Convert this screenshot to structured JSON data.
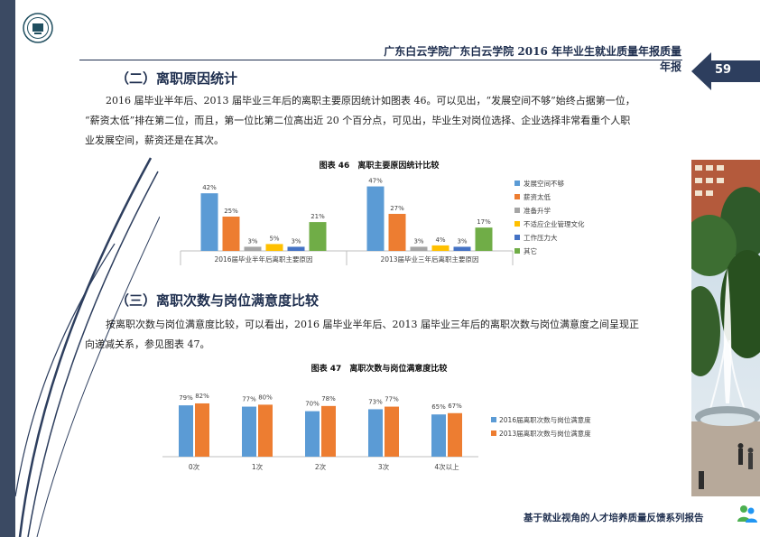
{
  "header": {
    "title": "广东白云学院广东白云学院 2016 年毕业生就业质量年报质量年报",
    "page_number": "59"
  },
  "section2": {
    "title": "（二）离职原因统计",
    "paragraph_lines": [
      "2016 届毕业半年后、2013 届毕业三年后的离职主要原因统计如图表 46。可以见出，“发展空间不够”始终占据第一位，",
      "“薪资太低”排在第二位，而且，第一位比第二位高出近 20 个百分点，可见出，毕业生对岗位选择、企业选择非常看重个人职",
      "业发展空间，薪资还是在其次。"
    ]
  },
  "chart46": {
    "title": "图表 46　离职主要原因统计比较",
    "chart_data": {
      "type": "bar",
      "title": "图表 46　离职主要原因统计比较",
      "categories": [
        "2016届毕业半年后离职主要原因",
        "2013届毕业三年后离职主要原因"
      ],
      "series": [
        {
          "name": "发展空间不够",
          "values": [
            42,
            47
          ],
          "labels": [
            "42%",
            "47%"
          ],
          "color": "#5b9bd5"
        },
        {
          "name": "薪资太低",
          "values": [
            25,
            27
          ],
          "labels": [
            "25%",
            "27%"
          ],
          "color": "#ed7d31"
        },
        {
          "name": "准备升学",
          "values": [
            3,
            3
          ],
          "labels": [
            "3%",
            "3%"
          ],
          "color": "#a5a5a5"
        },
        {
          "name": "不适应企业管理文化",
          "values": [
            5,
            4
          ],
          "labels": [
            "5%",
            "4%"
          ],
          "color": "#ffc000"
        },
        {
          "name": "工作压力大",
          "values": [
            3,
            3
          ],
          "labels": [
            "3%",
            "3%"
          ],
          "color": "#4472c4"
        },
        {
          "name": "其它",
          "values": [
            21,
            17
          ],
          "labels": [
            "21%",
            "17%"
          ],
          "color": "#70ad47"
        }
      ],
      "ylim": [
        0,
        50
      ],
      "grid": false,
      "legend": "right"
    }
  },
  "section3": {
    "title": "（三）离职次数与岗位满意度比较",
    "paragraph_lines": [
      "按离职次数与岗位满意度比较，可以看出，2016 届毕业半年后、2013 届毕业三年后的离职次数与岗位满意度之间呈现正",
      "向递减关系，参见图表 47。"
    ]
  },
  "chart47": {
    "title": "图表 47　离职次数与岗位满意度比较",
    "chart_data": {
      "type": "bar",
      "title": "图表 47　离职次数与岗位满意度比较",
      "categories": [
        "0次",
        "1次",
        "2次",
        "3次",
        "4次以上"
      ],
      "series": [
        {
          "name": "2016届离职次数与岗位满意度",
          "values": [
            79,
            77,
            70,
            73,
            65
          ],
          "labels": [
            "79%",
            "77%",
            "70%",
            "73%",
            "65%"
          ],
          "color": "#5b9bd5"
        },
        {
          "name": "2013届离职次数与岗位满意度",
          "values": [
            82,
            80,
            78,
            77,
            67
          ],
          "labels": [
            "82%",
            "80%",
            "78%",
            "77%",
            "67%"
          ],
          "color": "#ed7d31"
        }
      ],
      "ylim": [
        0,
        100
      ],
      "grid": false,
      "legend": "right"
    }
  },
  "footer": {
    "text": "基于就业视角的人才培养质量反馈系列报告"
  },
  "colors": {
    "navy": "#1f2f4f",
    "band": "#3b4a63",
    "arrow": "#2d3e5e"
  },
  "icons": {
    "logo": "university-seal-icon",
    "footer": "people-icon",
    "arrow": "page-arrow-icon"
  }
}
